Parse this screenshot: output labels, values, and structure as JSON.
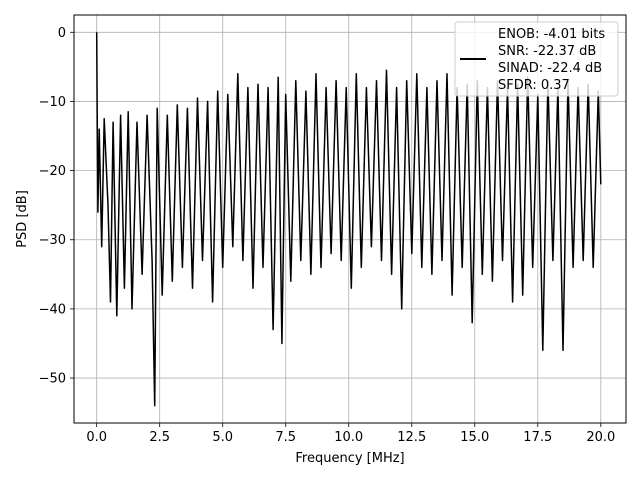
{
  "chart_data": {
    "type": "line",
    "xlabel": "Frequency [MHz]",
    "ylabel": "PSD [dB]",
    "xlim": [
      -0.9,
      21.0
    ],
    "ylim": [
      -56.5,
      2.5
    ],
    "xticks": [
      0.0,
      2.5,
      5.0,
      7.5,
      10.0,
      12.5,
      15.0,
      17.5,
      20.0
    ],
    "xtick_labels": [
      "0.0",
      "2.5",
      "5.0",
      "7.5",
      "10.0",
      "12.5",
      "15.0",
      "17.5",
      "20.0"
    ],
    "yticks": [
      0,
      -10,
      -20,
      -30,
      -40,
      -50
    ],
    "ytick_labels": [
      "0",
      "−10",
      "−20",
      "−30",
      "−40",
      "−50"
    ],
    "grid": true,
    "legend_position": "top-right",
    "line_color": "#000000",
    "series": [
      {
        "name": "ENOB: -4.01 bits",
        "x": [
          0.0,
          0.02,
          0.05,
          0.1,
          0.2,
          0.3,
          0.45,
          0.55,
          0.65,
          0.8,
          0.95,
          1.1,
          1.25,
          1.4,
          1.6,
          1.8,
          2.0,
          2.2,
          2.3,
          2.4,
          2.6,
          2.8,
          3.0,
          3.2,
          3.4,
          3.6,
          3.8,
          4.0,
          4.2,
          4.4,
          4.6,
          4.8,
          5.0,
          5.2,
          5.4,
          5.6,
          5.8,
          6.0,
          6.2,
          6.4,
          6.6,
          6.8,
          7.0,
          7.2,
          7.35,
          7.5,
          7.7,
          7.9,
          8.1,
          8.3,
          8.5,
          8.7,
          8.9,
          9.1,
          9.3,
          9.5,
          9.7,
          9.9,
          10.1,
          10.3,
          10.5,
          10.7,
          10.9,
          11.1,
          11.3,
          11.5,
          11.7,
          11.9,
          12.1,
          12.3,
          12.5,
          12.7,
          12.9,
          13.1,
          13.3,
          13.5,
          13.7,
          13.9,
          14.1,
          14.3,
          14.5,
          14.7,
          14.9,
          15.1,
          15.3,
          15.5,
          15.7,
          15.9,
          16.1,
          16.3,
          16.5,
          16.7,
          16.9,
          17.1,
          17.3,
          17.5,
          17.7,
          17.9,
          18.1,
          18.3,
          18.5,
          18.7,
          18.9,
          19.1,
          19.3,
          19.5,
          19.7,
          19.9,
          20.0
        ],
        "y": [
          0.0,
          -12.0,
          -26.0,
          -14.0,
          -31.0,
          -12.5,
          -25.0,
          -39.0,
          -13.0,
          -41.0,
          -12.0,
          -37.0,
          -11.5,
          -40.0,
          -13.0,
          -35.0,
          -12.0,
          -33.0,
          -54.0,
          -11.0,
          -38.0,
          -12.0,
          -36.0,
          -10.5,
          -34.0,
          -11.0,
          -37.0,
          -9.5,
          -33.0,
          -10.0,
          -39.0,
          -8.5,
          -34.0,
          -9.0,
          -31.0,
          -6.0,
          -33.0,
          -8.0,
          -37.0,
          -7.5,
          -34.0,
          -8.0,
          -43.0,
          -6.5,
          -45.0,
          -9.0,
          -36.0,
          -7.0,
          -33.0,
          -8.5,
          -35.0,
          -6.0,
          -34.0,
          -8.0,
          -32.0,
          -7.0,
          -33.0,
          -8.0,
          -37.0,
          -6.0,
          -34.0,
          -8.0,
          -31.0,
          -7.0,
          -33.0,
          -5.5,
          -35.0,
          -8.0,
          -40.0,
          -7.0,
          -32.0,
          -6.0,
          -34.0,
          -8.0,
          -35.0,
          -7.0,
          -33.0,
          -6.0,
          -38.0,
          -8.0,
          -34.0,
          -7.5,
          -42.0,
          -7.0,
          -35.0,
          -8.0,
          -36.0,
          -7.0,
          -33.0,
          -8.0,
          -39.0,
          -7.5,
          -38.0,
          -6.5,
          -34.0,
          -9.0,
          -46.0,
          -7.0,
          -33.0,
          -8.0,
          -46.0,
          -7.0,
          -34.0,
          -8.0,
          -33.0,
          -7.5,
          -34.0,
          -8.5,
          -22.0
        ]
      }
    ],
    "legend_entries": [
      "ENOB: -4.01 bits",
      "SNR: -22.37 dB",
      "SINAD: -22.4 dB",
      "SFDR: 0.37"
    ]
  }
}
